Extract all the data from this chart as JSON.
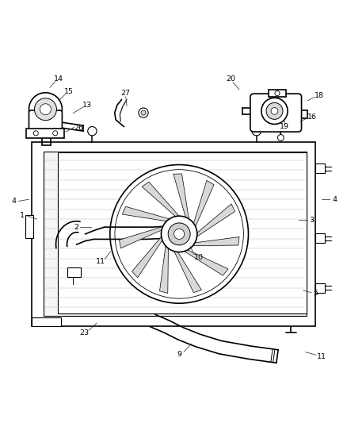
{
  "bg_color": "#ffffff",
  "line_color": "#000000",
  "fig_width": 4.38,
  "fig_height": 5.33,
  "dpi": 100,
  "font_size": 6.8,
  "lw_main": 1.2,
  "lw_thin": 0.8
}
